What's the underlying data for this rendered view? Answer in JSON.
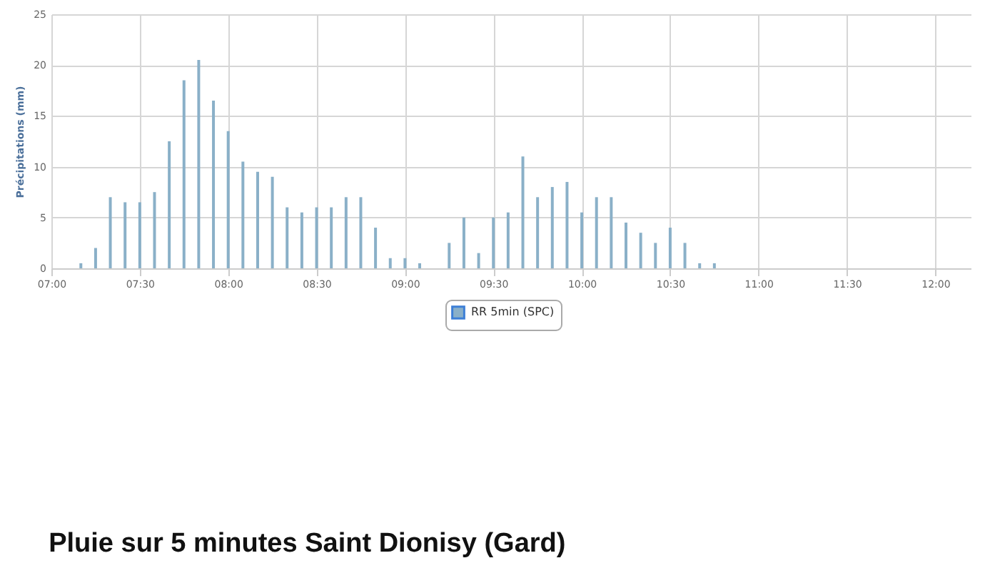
{
  "chart_data": {
    "type": "bar",
    "title": "Pluie sur 5 minutes Saint Dionisy (Gard)",
    "ylabel": "Précipitations (mm)",
    "x": [
      7.1667,
      7.25,
      7.3333,
      7.4167,
      7.5,
      7.5833,
      7.6667,
      7.75,
      7.8333,
      7.9167,
      8,
      8.0833,
      8.1667,
      8.25,
      8.3333,
      8.4167,
      8.5,
      8.5833,
      8.6667,
      8.75,
      8.8333,
      8.9167,
      9,
      9.0833,
      9.25,
      9.3333,
      9.4167,
      9.5,
      9.5833,
      9.6667,
      9.75,
      9.8333,
      9.9167,
      10,
      10.0833,
      10.1667,
      10.25,
      10.3333,
      10.4167,
      10.5,
      10.5833,
      10.6667,
      10.75
    ],
    "series": [
      {
        "name": "RR 5min (SPC)",
        "color": "#8ab0c8",
        "values": [
          0.5,
          2,
          7,
          6.5,
          6.5,
          7.5,
          12.5,
          18.5,
          20.5,
          16.5,
          13.5,
          10.5,
          9.5,
          9,
          6,
          5.5,
          6,
          6,
          7,
          7,
          4,
          1,
          1,
          0.5,
          2.5,
          5,
          1.5,
          5,
          5.5,
          11,
          7,
          8,
          8.5,
          5.5,
          7,
          7,
          4.5,
          3.5,
          2.5,
          4,
          2.5,
          0.5,
          0.5
        ]
      }
    ],
    "xlim": [
      7,
      12.2
    ],
    "xticks": [
      {
        "value": 7,
        "label": "07:00"
      },
      {
        "value": 7.5,
        "label": "07:30"
      },
      {
        "value": 8,
        "label": "08:00"
      },
      {
        "value": 8.5,
        "label": "08:30"
      },
      {
        "value": 9,
        "label": "09:00"
      },
      {
        "value": 9.5,
        "label": "09:30"
      },
      {
        "value": 10,
        "label": "10:00"
      },
      {
        "value": 10.5,
        "label": "10:30"
      },
      {
        "value": 11,
        "label": "11:00"
      },
      {
        "value": 11.5,
        "label": "11:30"
      },
      {
        "value": 12,
        "label": "12:00"
      }
    ],
    "ylim": [
      0,
      25
    ],
    "yticks": [
      0,
      5,
      10,
      15,
      20,
      25
    ],
    "grid": true,
    "legend": "bottom"
  }
}
